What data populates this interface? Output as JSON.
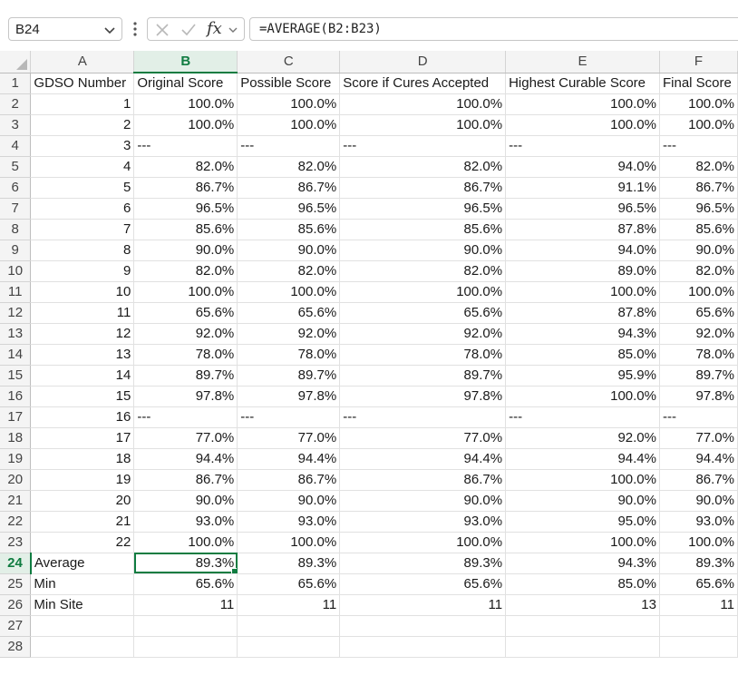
{
  "name_box": "B24",
  "formula": "=AVERAGE(B2:B23)",
  "fx_label": "fx",
  "icons": [
    "chevron-down-icon",
    "more-vert-icon",
    "cancel-icon",
    "enter-check-icon",
    "function-icon",
    "select-all-icon"
  ],
  "colors": {
    "accent": "#107c41",
    "gridline": "#e1e1e1",
    "header_bg": "#f4f4f4"
  },
  "selected_cell": {
    "column": "B",
    "row": "24"
  },
  "columns": [
    "A",
    "B",
    "C",
    "D",
    "E",
    "F"
  ],
  "rows": [
    {
      "num": "1",
      "cells": [
        "GDSO Number",
        "Original Score",
        "Possible Score",
        "Score if Cures Accepted",
        "Highest Curable Score",
        "Final Score"
      ]
    },
    {
      "num": "2",
      "cells": [
        "1",
        "100.0%",
        "100.0%",
        "100.0%",
        "100.0%",
        "100.0%"
      ]
    },
    {
      "num": "3",
      "cells": [
        "2",
        "100.0%",
        "100.0%",
        "100.0%",
        "100.0%",
        "100.0%"
      ]
    },
    {
      "num": "4",
      "cells": [
        "3",
        "---",
        "---",
        "---",
        "---",
        "---"
      ]
    },
    {
      "num": "5",
      "cells": [
        "4",
        "82.0%",
        "82.0%",
        "82.0%",
        "94.0%",
        "82.0%"
      ]
    },
    {
      "num": "6",
      "cells": [
        "5",
        "86.7%",
        "86.7%",
        "86.7%",
        "91.1%",
        "86.7%"
      ]
    },
    {
      "num": "7",
      "cells": [
        "6",
        "96.5%",
        "96.5%",
        "96.5%",
        "96.5%",
        "96.5%"
      ]
    },
    {
      "num": "8",
      "cells": [
        "7",
        "85.6%",
        "85.6%",
        "85.6%",
        "87.8%",
        "85.6%"
      ]
    },
    {
      "num": "9",
      "cells": [
        "8",
        "90.0%",
        "90.0%",
        "90.0%",
        "94.0%",
        "90.0%"
      ]
    },
    {
      "num": "10",
      "cells": [
        "9",
        "82.0%",
        "82.0%",
        "82.0%",
        "89.0%",
        "82.0%"
      ]
    },
    {
      "num": "11",
      "cells": [
        "10",
        "100.0%",
        "100.0%",
        "100.0%",
        "100.0%",
        "100.0%"
      ]
    },
    {
      "num": "12",
      "cells": [
        "11",
        "65.6%",
        "65.6%",
        "65.6%",
        "87.8%",
        "65.6%"
      ]
    },
    {
      "num": "13",
      "cells": [
        "12",
        "92.0%",
        "92.0%",
        "92.0%",
        "94.3%",
        "92.0%"
      ]
    },
    {
      "num": "14",
      "cells": [
        "13",
        "78.0%",
        "78.0%",
        "78.0%",
        "85.0%",
        "78.0%"
      ]
    },
    {
      "num": "15",
      "cells": [
        "14",
        "89.7%",
        "89.7%",
        "89.7%",
        "95.9%",
        "89.7%"
      ]
    },
    {
      "num": "16",
      "cells": [
        "15",
        "97.8%",
        "97.8%",
        "97.8%",
        "100.0%",
        "97.8%"
      ]
    },
    {
      "num": "17",
      "cells": [
        "16",
        "---",
        "---",
        "---",
        "---",
        "---"
      ]
    },
    {
      "num": "18",
      "cells": [
        "17",
        "77.0%",
        "77.0%",
        "77.0%",
        "92.0%",
        "77.0%"
      ]
    },
    {
      "num": "19",
      "cells": [
        "18",
        "94.4%",
        "94.4%",
        "94.4%",
        "94.4%",
        "94.4%"
      ]
    },
    {
      "num": "20",
      "cells": [
        "19",
        "86.7%",
        "86.7%",
        "86.7%",
        "100.0%",
        "86.7%"
      ]
    },
    {
      "num": "21",
      "cells": [
        "20",
        "90.0%",
        "90.0%",
        "90.0%",
        "90.0%",
        "90.0%"
      ]
    },
    {
      "num": "22",
      "cells": [
        "21",
        "93.0%",
        "93.0%",
        "93.0%",
        "95.0%",
        "93.0%"
      ]
    },
    {
      "num": "23",
      "cells": [
        "22",
        "100.0%",
        "100.0%",
        "100.0%",
        "100.0%",
        "100.0%"
      ]
    },
    {
      "num": "24",
      "cells": [
        "Average",
        "89.3%",
        "89.3%",
        "89.3%",
        "94.3%",
        "89.3%"
      ]
    },
    {
      "num": "25",
      "cells": [
        "Min",
        "65.6%",
        "65.6%",
        "65.6%",
        "85.0%",
        "65.6%"
      ]
    },
    {
      "num": "26",
      "cells": [
        "Min Site",
        "11",
        "11",
        "11",
        "13",
        "11"
      ]
    },
    {
      "num": "27",
      "cells": [
        "",
        "",
        "",
        "",
        "",
        ""
      ]
    },
    {
      "num": "28",
      "cells": [
        "",
        "",
        "",
        "",
        "",
        ""
      ]
    }
  ]
}
